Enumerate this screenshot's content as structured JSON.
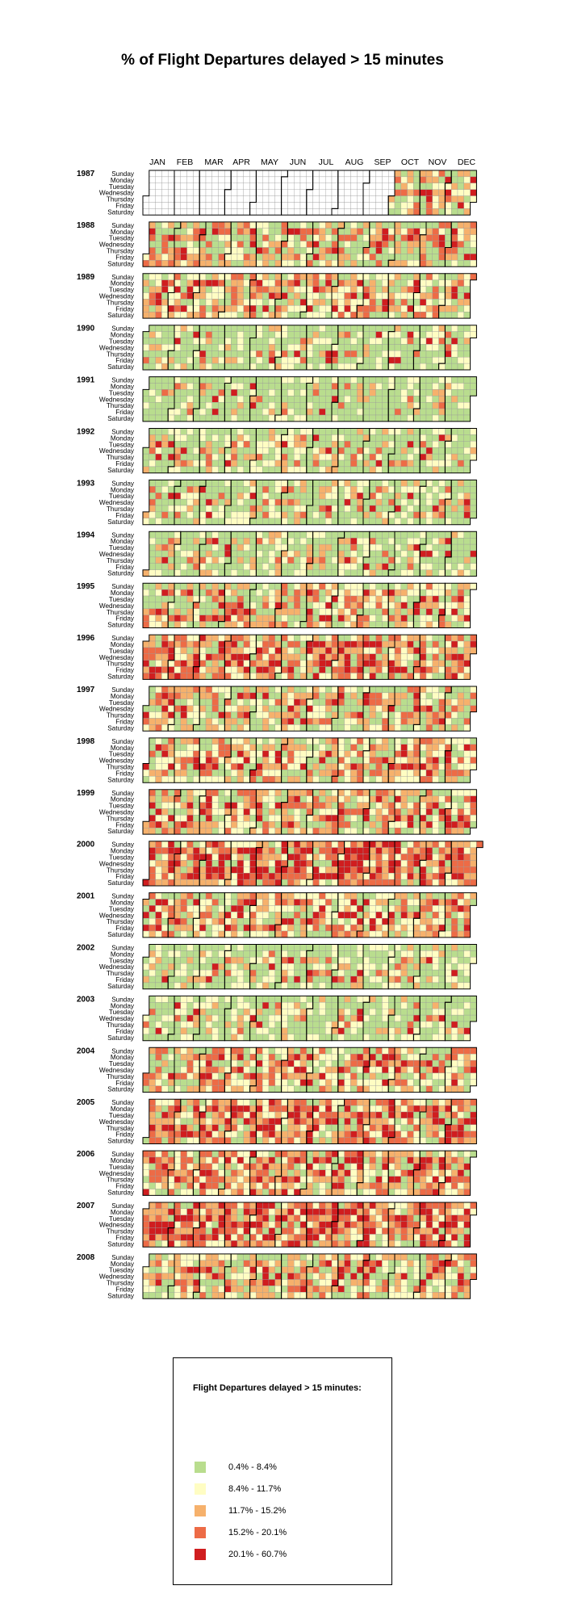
{
  "title": "% of Flight Departures delayed > 15 minutes",
  "chart_data": {
    "type": "heatmap",
    "title": "% of Flight Departures delayed > 15 minutes",
    "calendar": "one row of weeks per year, seven weekday rows per year, Sunday on top",
    "months": [
      "JAN",
      "FEB",
      "MAR",
      "APR",
      "MAY",
      "JUN",
      "JUL",
      "AUG",
      "SEP",
      "OCT",
      "NOV",
      "DEC"
    ],
    "weekdays": [
      "Sunday",
      "Monday",
      "Tuesday",
      "Wednesday",
      "Thursday",
      "Friday",
      "Saturday"
    ],
    "years": [
      "1987",
      "1988",
      "1989",
      "1990",
      "1991",
      "1992",
      "1993",
      "1994",
      "1995",
      "1996",
      "1997",
      "1998",
      "1999",
      "2000",
      "2001",
      "2002",
      "2003",
      "2004",
      "2005",
      "2006",
      "2007",
      "2008"
    ],
    "data_start": {
      "1987": "1987-10-01"
    },
    "level_counts_by_year": {
      "1987": [
        26,
        22,
        18,
        13,
        13
      ],
      "1988": [
        120,
        80,
        70,
        55,
        41
      ],
      "1989": [
        80,
        85,
        80,
        65,
        55
      ],
      "1990": [
        190,
        85,
        45,
        25,
        20
      ],
      "1991": [
        220,
        80,
        35,
        18,
        12
      ],
      "1992": [
        190,
        85,
        45,
        25,
        20
      ],
      "1993": [
        190,
        85,
        45,
        25,
        20
      ],
      "1994": [
        190,
        85,
        45,
        25,
        20
      ],
      "1995": [
        120,
        80,
        70,
        55,
        40
      ],
      "1996": [
        50,
        70,
        85,
        80,
        81
      ],
      "1997": [
        120,
        80,
        70,
        55,
        40
      ],
      "1998": [
        80,
        85,
        80,
        65,
        55
      ],
      "1999": [
        80,
        85,
        80,
        65,
        55
      ],
      "2000": [
        25,
        50,
        75,
        95,
        121
      ],
      "2001": [
        80,
        85,
        80,
        65,
        55
      ],
      "2002": [
        190,
        85,
        45,
        25,
        20
      ],
      "2003": [
        190,
        85,
        45,
        25,
        20
      ],
      "2004": [
        80,
        85,
        80,
        65,
        55
      ],
      "2005": [
        50,
        70,
        85,
        80,
        80
      ],
      "2006": [
        50,
        70,
        85,
        80,
        80
      ],
      "2007": [
        25,
        50,
        75,
        95,
        120
      ],
      "2008": [
        80,
        85,
        80,
        65,
        56
      ]
    },
    "legend_title": "Flight Departures delayed > 15 minutes:",
    "legend": [
      {
        "label": "0.4% - 8.4%",
        "range": [
          0.4,
          8.4
        ],
        "color": "#b9dd8e"
      },
      {
        "label": "8.4% - 11.7%",
        "range": [
          8.4,
          11.7
        ],
        "color": "#fffdc3"
      },
      {
        "label": "11.7% - 15.2%",
        "range": [
          11.7,
          15.2
        ],
        "color": "#f6b16c"
      },
      {
        "label": "15.2% - 20.1%",
        "range": [
          15.2,
          20.1
        ],
        "color": "#ed6b46"
      },
      {
        "label": "20.1% - 60.7%",
        "range": [
          20.1,
          60.7
        ],
        "color": "#d01d1f"
      }
    ],
    "empty_color": "#ffffff"
  }
}
